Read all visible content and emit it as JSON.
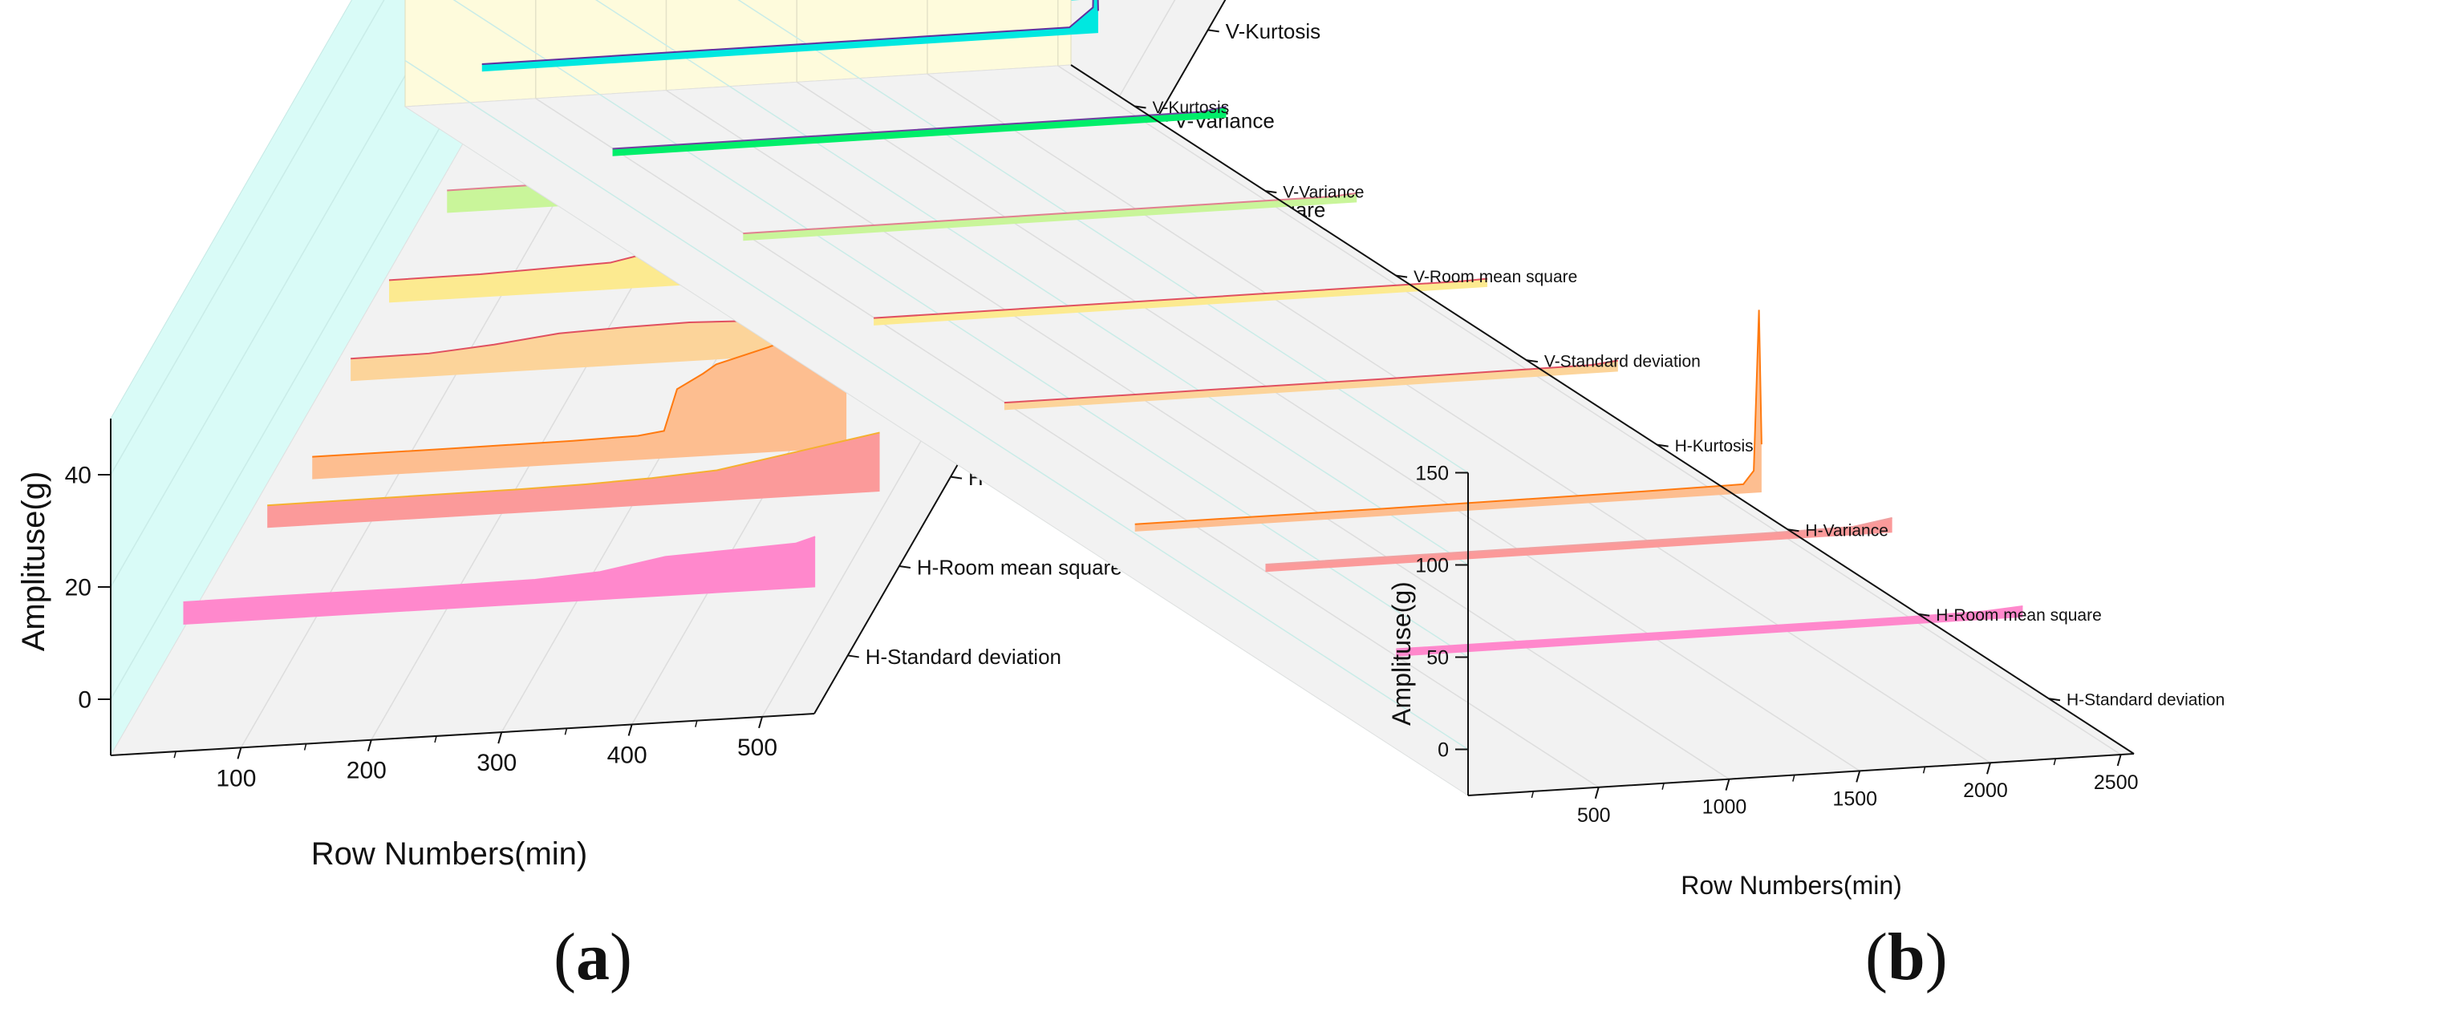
{
  "figure": {
    "panel_labels": [
      "(a)",
      "(b)"
    ]
  },
  "chart_data": [
    {
      "type": "area",
      "panel": "(a)",
      "xlabel": "Row Numbers(min)",
      "ylabel": "Amplituse(g)",
      "xlim": [
        0,
        540
      ],
      "ylim": [
        -10,
        50
      ],
      "x_ticks": [
        100,
        200,
        300,
        400,
        500
      ],
      "y_ticks": [
        0,
        20,
        40
      ],
      "depth_axis": "categorical",
      "series": [
        {
          "name": "H-Standard deviation",
          "color": "#ff88cc",
          "line": "#ff88cc",
          "points": [
            [
              30,
              6.5
            ],
            [
              100,
              6.6
            ],
            [
              200,
              6.6
            ],
            [
              300,
              6.8
            ],
            [
              350,
              7.5
            ],
            [
              400,
              9.5
            ],
            [
              450,
              10.0
            ],
            [
              500,
              10.5
            ],
            [
              515,
              11.5
            ]
          ]
        },
        {
          "name": "H-Room mean square",
          "color": "#fb9a9a",
          "line": "#f5b030",
          "points": [
            [
              55,
              7.5
            ],
            [
              150,
              7.6
            ],
            [
              250,
              7.7
            ],
            [
              300,
              7.9
            ],
            [
              350,
              8.3
            ],
            [
              400,
              9.0
            ],
            [
              450,
              11.0
            ],
            [
              500,
              13.0
            ],
            [
              525,
              14.0
            ]
          ]
        },
        {
          "name": "H-Variance",
          "color": "#fdbe90",
          "line": "#ff7a10",
          "points": [
            [
              50,
              0.3
            ],
            [
              150,
              0.3
            ],
            [
              250,
              0.4
            ],
            [
              300,
              0.6
            ],
            [
              320,
              1.2
            ],
            [
              330,
              8.5
            ],
            [
              350,
              11.0
            ],
            [
              360,
              12.5
            ],
            [
              400,
              15.0
            ],
            [
              420,
              16.5
            ],
            [
              440,
              17.5
            ],
            [
              455,
              30.0
            ],
            [
              460,
              25.0
            ]
          ]
        },
        {
          "name": "H-Kurtosis",
          "color": "#fcd49a",
          "line": "#e05060",
          "points": [
            [
              40,
              2.0
            ],
            [
              100,
              2.1
            ],
            [
              150,
              3.0
            ],
            [
              200,
              4.3
            ],
            [
              250,
              4.7
            ],
            [
              300,
              4.9
            ],
            [
              350,
              4.5
            ],
            [
              400,
              3.5
            ],
            [
              450,
              3.8
            ],
            [
              480,
              3.9
            ]
          ]
        },
        {
          "name": "V-Standard deviation",
          "color": "#fcea90",
          "line": "#e05060",
          "points": [
            [
              30,
              0.2
            ],
            [
              100,
              0.3
            ],
            [
              200,
              1.0
            ],
            [
              300,
              5.5
            ],
            [
              350,
              7.2
            ],
            [
              400,
              6.5
            ],
            [
              430,
              9.0
            ],
            [
              445,
              10.5
            ]
          ]
        },
        {
          "name": "V-Room mean square",
          "color": "#c9f59a",
          "line": "#e08090",
          "points": [
            [
              35,
              0.2
            ],
            [
              150,
              0.3
            ],
            [
              250,
              0.6
            ],
            [
              300,
              2.0
            ],
            [
              350,
              4.0
            ],
            [
              400,
              5.2
            ],
            [
              440,
              6.0
            ],
            [
              450,
              7.3
            ]
          ]
        },
        {
          "name": "V-Variance",
          "color": "#00ee6a",
          "line": "#7040a0",
          "points": [
            [
              30,
              0.2
            ],
            [
              150,
              0.3
            ],
            [
              200,
              1.0
            ],
            [
              250,
              2.0
            ],
            [
              280,
              4.0
            ],
            [
              300,
              18.0
            ],
            [
              315,
              34.0
            ],
            [
              330,
              27.0
            ],
            [
              355,
              24.0
            ],
            [
              380,
              26.0
            ],
            [
              395,
              23.0
            ],
            [
              410,
              28.0
            ],
            [
              425,
              18.0
            ],
            [
              440,
              30.0
            ],
            [
              455,
              26.0
            ],
            [
              465,
              23.5
            ]
          ]
        },
        {
          "name": "V-Kurtosis",
          "color": "#00e8e0",
          "line": "#6030a0",
          "points": [
            [
              30,
              1.0
            ],
            [
              150,
              1.5
            ],
            [
              200,
              2.2
            ],
            [
              250,
              1.8
            ],
            [
              300,
              1.4
            ],
            [
              350,
              1.2
            ],
            [
              400,
              0.8
            ],
            [
              445,
              0.7
            ]
          ]
        }
      ]
    },
    {
      "type": "area",
      "panel": "(b)",
      "xlabel": "Row Numbers(min)",
      "ylabel": "Amplituse(g)",
      "xlim": [
        0,
        2550
      ],
      "ylim": [
        -25,
        150
      ],
      "x_ticks": [
        500,
        1000,
        1500,
        2000,
        2500
      ],
      "y_ticks": [
        0,
        50,
        100,
        150
      ],
      "depth_axis": "categorical",
      "series": [
        {
          "name": "H-Standard deviation",
          "color": "#ff88cc",
          "line": "#ff88cc",
          "points": [
            [
              50,
              24
            ],
            [
              1000,
              24
            ],
            [
              2000,
              24
            ],
            [
              2300,
              24.5
            ],
            [
              2450,
              26
            ]
          ]
        },
        {
          "name": "H-Room mean square",
          "color": "#fb9a9a",
          "line": "#f0a0a0",
          "points": [
            [
              50,
              24
            ],
            [
              1000,
              24
            ],
            [
              2000,
              24
            ],
            [
              2300,
              24.5
            ],
            [
              2450,
              28
            ]
          ]
        },
        {
          "name": "H-Variance",
          "color": "#fdbe90",
          "line": "#ff7a10",
          "points": [
            [
              50,
              0
            ],
            [
              1000,
              0
            ],
            [
              2000,
              0.5
            ],
            [
              2380,
              1
            ],
            [
              2420,
              8
            ],
            [
              2440,
              95
            ],
            [
              2450,
              22
            ]
          ]
        },
        {
          "name": "H-Kurtosis",
          "color": "#fcd49a",
          "line": "#e05060",
          "points": [
            [
              50,
              20
            ],
            [
              1500,
              20
            ],
            [
              2300,
              20.5
            ],
            [
              2400,
              22
            ]
          ]
        },
        {
          "name": "V-Standard deviation",
          "color": "#fcea90",
          "line": "#e05060",
          "points": [
            [
              50,
              20
            ],
            [
              1500,
              20
            ],
            [
              2300,
              20
            ],
            [
              2400,
              20.5
            ]
          ]
        },
        {
          "name": "V-Room mean square",
          "color": "#c9f59a",
          "line": "#e08090",
          "points": [
            [
              50,
              20
            ],
            [
              1500,
              20
            ],
            [
              2300,
              20
            ],
            [
              2400,
              21
            ]
          ]
        },
        {
          "name": "V-Variance",
          "color": "#00ee6a",
          "line": "#7040a0",
          "points": [
            [
              50,
              20
            ],
            [
              1500,
              20
            ],
            [
              2300,
              20
            ],
            [
              2400,
              22
            ]
          ]
        },
        {
          "name": "V-Kurtosis",
          "color": "#00e8e0",
          "line": "#6030a0",
          "points": [
            [
              50,
              20
            ],
            [
              1500,
              20
            ],
            [
              2300,
              20
            ],
            [
              2390,
              30
            ],
            [
              2400,
              95
            ],
            [
              2410,
              28
            ]
          ]
        }
      ]
    }
  ]
}
